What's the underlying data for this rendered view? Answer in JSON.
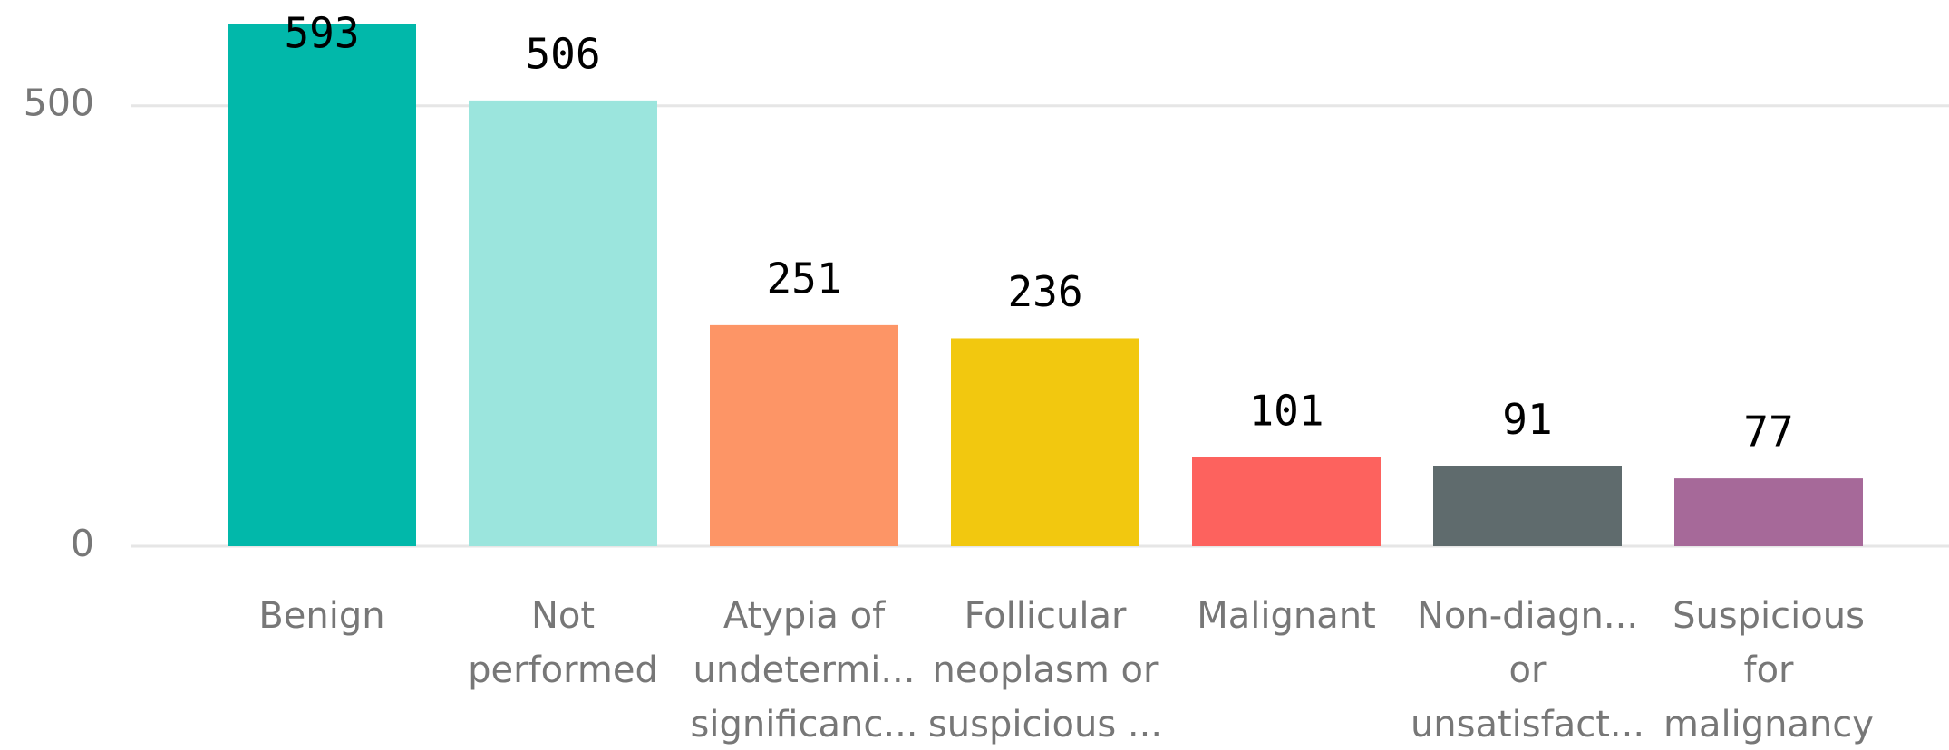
{
  "chart_data": {
    "type": "bar",
    "categories": [
      [
        "Benign"
      ],
      [
        "Not",
        "performed"
      ],
      [
        "Atypia of",
        "undetermi...",
        "significanc..."
      ],
      [
        "Follicular",
        "neoplasm or",
        "suspicious ..."
      ],
      [
        "Malignant"
      ],
      [
        "Non-diagn...",
        "or",
        "unsatisfact..."
      ],
      [
        "Suspicious",
        "for",
        "malignancy"
      ]
    ],
    "values": [
      593,
      506,
      251,
      236,
      101,
      91,
      77
    ],
    "colors": [
      "#01b8aa",
      "#9be5dd",
      "#fd9566",
      "#f2c80f",
      "#fd625e",
      "#5f6b6d",
      "#a66999"
    ],
    "ylim": [
      0,
      620
    ],
    "yticks": [
      0,
      500
    ],
    "grid": true
  }
}
